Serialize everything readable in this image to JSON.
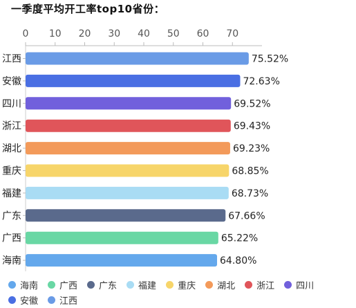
{
  "title": "一季度平均开工率top10省份：",
  "chart_data": {
    "type": "bar",
    "orientation": "horizontal",
    "title": "一季度平均开工率top10省份：",
    "xlabel": "",
    "ylabel": "",
    "xlim": [
      0,
      80
    ],
    "x_ticks": [
      0,
      10,
      20,
      30,
      40,
      50,
      60,
      70
    ],
    "x_axis_position": "top",
    "grid": false,
    "categories": [
      "江西",
      "安徽",
      "四川",
      "浙江",
      "湖北",
      "重庆",
      "福建",
      "广东",
      "广西",
      "海南"
    ],
    "values": [
      75.52,
      72.63,
      69.52,
      69.43,
      69.23,
      68.85,
      68.73,
      67.66,
      65.22,
      64.8
    ],
    "value_labels": [
      "75.52%",
      "72.63%",
      "69.52%",
      "69.43%",
      "69.23%",
      "68.85%",
      "68.73%",
      "67.66%",
      "65.22%",
      "64.80%"
    ],
    "colors": [
      "#6a9be6",
      "#4a6fe3",
      "#7160dc",
      "#e0555a",
      "#f39a5a",
      "#f7d56a",
      "#a9dcf4",
      "#5a6a8c",
      "#69d7a4",
      "#64a8ec"
    ],
    "legend_position": "bottom"
  },
  "legend": [
    {
      "label": "海南",
      "color": "#64a8ec"
    },
    {
      "label": "广西",
      "color": "#69d7a4"
    },
    {
      "label": "广东",
      "color": "#5a6a8c"
    },
    {
      "label": "福建",
      "color": "#a9dcf4"
    },
    {
      "label": "重庆",
      "color": "#f7d56a"
    },
    {
      "label": "湖北",
      "color": "#f39a5a"
    },
    {
      "label": "浙江",
      "color": "#e0555a"
    },
    {
      "label": "四川",
      "color": "#7160dc"
    },
    {
      "label": "安徽",
      "color": "#4a6fe3"
    },
    {
      "label": "江西",
      "color": "#6a9be6"
    }
  ]
}
